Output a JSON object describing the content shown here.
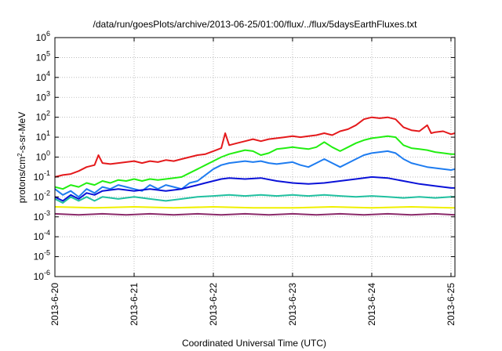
{
  "chart_data": {
    "type": "line",
    "title": "/data/run/goesPlots/archive/2013-06-25/01:00/flux/../flux/5daysEarthFluxes.txt",
    "xlabel": "Coordinated Universal Time (UTC)",
    "ylabel": {
      "pre": "protons/cm",
      "sup": "2",
      "post": "-s-sr-MeV"
    },
    "yscale": "log",
    "ylim": [
      -6,
      6
    ],
    "xlim": [
      0,
      5.05
    ],
    "grid": true,
    "legend": "none",
    "y_ticks": [
      {
        "exp": -6,
        "base": "10",
        "pow": "-6"
      },
      {
        "exp": -5,
        "base": "10",
        "pow": "-5"
      },
      {
        "exp": -4,
        "base": "10",
        "pow": "-4"
      },
      {
        "exp": -3,
        "base": "10",
        "pow": "-3"
      },
      {
        "exp": -2,
        "base": "10",
        "pow": "-2"
      },
      {
        "exp": -1,
        "base": "10",
        "pow": "-1"
      },
      {
        "exp": 0,
        "base": "10",
        "pow": "0"
      },
      {
        "exp": 1,
        "base": "10",
        "pow": "1"
      },
      {
        "exp": 2,
        "base": "10",
        "pow": "2"
      },
      {
        "exp": 3,
        "base": "10",
        "pow": "3"
      },
      {
        "exp": 4,
        "base": "10",
        "pow": "4"
      },
      {
        "exp": 5,
        "base": "10",
        "pow": "5"
      },
      {
        "exp": 6,
        "base": "10",
        "pow": "6"
      }
    ],
    "x_ticks": [
      {
        "day": 0,
        "label": "2013-6-20"
      },
      {
        "day": 1,
        "label": "2013-6-21"
      },
      {
        "day": 2,
        "label": "2013-6-22"
      },
      {
        "day": 3,
        "label": "2013-6-23"
      },
      {
        "day": 4,
        "label": "2013-6-24"
      },
      {
        "day": 5,
        "label": "2013-6-25"
      }
    ],
    "series": [
      {
        "color": "#e41a1c",
        "points": [
          [
            0,
            -1.0
          ],
          [
            0.1,
            -0.9
          ],
          [
            0.2,
            -0.85
          ],
          [
            0.3,
            -0.7
          ],
          [
            0.4,
            -0.5
          ],
          [
            0.5,
            -0.4
          ],
          [
            0.55,
            0.1
          ],
          [
            0.6,
            -0.3
          ],
          [
            0.7,
            -0.35
          ],
          [
            0.8,
            -0.3
          ],
          [
            0.9,
            -0.25
          ],
          [
            1.0,
            -0.2
          ],
          [
            1.1,
            -0.3
          ],
          [
            1.2,
            -0.2
          ],
          [
            1.3,
            -0.25
          ],
          [
            1.4,
            -0.15
          ],
          [
            1.5,
            -0.2
          ],
          [
            1.6,
            -0.1
          ],
          [
            1.7,
            0.0
          ],
          [
            1.8,
            0.1
          ],
          [
            1.9,
            0.15
          ],
          [
            2.0,
            0.3
          ],
          [
            2.1,
            0.45
          ],
          [
            2.15,
            1.2
          ],
          [
            2.2,
            0.6
          ],
          [
            2.3,
            0.7
          ],
          [
            2.4,
            0.8
          ],
          [
            2.5,
            0.9
          ],
          [
            2.6,
            0.8
          ],
          [
            2.7,
            0.9
          ],
          [
            2.8,
            0.95
          ],
          [
            2.9,
            1.0
          ],
          [
            3.0,
            1.05
          ],
          [
            3.1,
            1.0
          ],
          [
            3.2,
            1.05
          ],
          [
            3.3,
            1.1
          ],
          [
            3.4,
            1.2
          ],
          [
            3.5,
            1.1
          ],
          [
            3.6,
            1.3
          ],
          [
            3.7,
            1.4
          ],
          [
            3.8,
            1.6
          ],
          [
            3.9,
            1.9
          ],
          [
            4.0,
            2.0
          ],
          [
            4.1,
            1.95
          ],
          [
            4.2,
            2.0
          ],
          [
            4.3,
            1.9
          ],
          [
            4.4,
            1.5
          ],
          [
            4.5,
            1.35
          ],
          [
            4.6,
            1.3
          ],
          [
            4.7,
            1.6
          ],
          [
            4.75,
            1.2
          ],
          [
            4.8,
            1.25
          ],
          [
            4.9,
            1.3
          ],
          [
            5.0,
            1.15
          ],
          [
            5.05,
            1.2
          ]
        ]
      },
      {
        "color": "#22ee11",
        "points": [
          [
            0,
            -1.5
          ],
          [
            0.1,
            -1.6
          ],
          [
            0.2,
            -1.4
          ],
          [
            0.3,
            -1.5
          ],
          [
            0.4,
            -1.3
          ],
          [
            0.5,
            -1.4
          ],
          [
            0.6,
            -1.2
          ],
          [
            0.7,
            -1.3
          ],
          [
            0.8,
            -1.15
          ],
          [
            0.9,
            -1.2
          ],
          [
            1.0,
            -1.1
          ],
          [
            1.1,
            -1.2
          ],
          [
            1.2,
            -1.1
          ],
          [
            1.3,
            -1.15
          ],
          [
            1.4,
            -1.1
          ],
          [
            1.5,
            -1.05
          ],
          [
            1.6,
            -1.0
          ],
          [
            1.7,
            -0.8
          ],
          [
            1.8,
            -0.6
          ],
          [
            1.9,
            -0.4
          ],
          [
            2.0,
            -0.2
          ],
          [
            2.1,
            0.0
          ],
          [
            2.2,
            0.15
          ],
          [
            2.3,
            0.25
          ],
          [
            2.4,
            0.35
          ],
          [
            2.5,
            0.3
          ],
          [
            2.6,
            0.1
          ],
          [
            2.7,
            0.2
          ],
          [
            2.8,
            0.4
          ],
          [
            2.9,
            0.45
          ],
          [
            3.0,
            0.5
          ],
          [
            3.1,
            0.45
          ],
          [
            3.2,
            0.4
          ],
          [
            3.3,
            0.5
          ],
          [
            3.4,
            0.75
          ],
          [
            3.5,
            0.5
          ],
          [
            3.6,
            0.3
          ],
          [
            3.7,
            0.5
          ],
          [
            3.8,
            0.7
          ],
          [
            3.9,
            0.85
          ],
          [
            4.0,
            0.95
          ],
          [
            4.1,
            1.0
          ],
          [
            4.2,
            1.05
          ],
          [
            4.3,
            1.0
          ],
          [
            4.4,
            0.6
          ],
          [
            4.5,
            0.45
          ],
          [
            4.6,
            0.4
          ],
          [
            4.7,
            0.35
          ],
          [
            4.8,
            0.25
          ],
          [
            4.9,
            0.2
          ],
          [
            5.0,
            0.15
          ],
          [
            5.05,
            0.15
          ]
        ]
      },
      {
        "color": "#1e7cf0",
        "points": [
          [
            0,
            -1.6
          ],
          [
            0.1,
            -1.9
          ],
          [
            0.2,
            -1.7
          ],
          [
            0.3,
            -2.0
          ],
          [
            0.4,
            -1.6
          ],
          [
            0.5,
            -1.8
          ],
          [
            0.6,
            -1.5
          ],
          [
            0.7,
            -1.6
          ],
          [
            0.8,
            -1.4
          ],
          [
            0.9,
            -1.5
          ],
          [
            1.0,
            -1.6
          ],
          [
            1.1,
            -1.7
          ],
          [
            1.2,
            -1.4
          ],
          [
            1.3,
            -1.6
          ],
          [
            1.4,
            -1.4
          ],
          [
            1.5,
            -1.5
          ],
          [
            1.6,
            -1.6
          ],
          [
            1.7,
            -1.3
          ],
          [
            1.8,
            -1.2
          ],
          [
            1.9,
            -0.9
          ],
          [
            2.0,
            -0.6
          ],
          [
            2.1,
            -0.4
          ],
          [
            2.2,
            -0.3
          ],
          [
            2.3,
            -0.25
          ],
          [
            2.4,
            -0.2
          ],
          [
            2.5,
            -0.25
          ],
          [
            2.6,
            -0.2
          ],
          [
            2.7,
            -0.3
          ],
          [
            2.8,
            -0.35
          ],
          [
            2.9,
            -0.3
          ],
          [
            3.0,
            -0.25
          ],
          [
            3.1,
            -0.4
          ],
          [
            3.2,
            -0.5
          ],
          [
            3.3,
            -0.3
          ],
          [
            3.4,
            -0.1
          ],
          [
            3.5,
            -0.3
          ],
          [
            3.6,
            -0.5
          ],
          [
            3.7,
            -0.3
          ],
          [
            3.8,
            -0.1
          ],
          [
            3.9,
            0.1
          ],
          [
            4.0,
            0.2
          ],
          [
            4.1,
            0.25
          ],
          [
            4.2,
            0.3
          ],
          [
            4.3,
            0.2
          ],
          [
            4.4,
            -0.1
          ],
          [
            4.5,
            -0.3
          ],
          [
            4.6,
            -0.4
          ],
          [
            4.7,
            -0.5
          ],
          [
            4.8,
            -0.55
          ],
          [
            4.9,
            -0.6
          ],
          [
            5.0,
            -0.65
          ],
          [
            5.05,
            -0.6
          ]
        ]
      },
      {
        "color": "#0a12d8",
        "points": [
          [
            0,
            -2.0
          ],
          [
            0.1,
            -2.2
          ],
          [
            0.2,
            -1.9
          ],
          [
            0.3,
            -2.1
          ],
          [
            0.4,
            -1.8
          ],
          [
            0.5,
            -1.9
          ],
          [
            0.6,
            -1.7
          ],
          [
            0.8,
            -1.6
          ],
          [
            1.0,
            -1.7
          ],
          [
            1.2,
            -1.6
          ],
          [
            1.4,
            -1.7
          ],
          [
            1.6,
            -1.6
          ],
          [
            1.7,
            -1.5
          ],
          [
            1.8,
            -1.4
          ],
          [
            1.9,
            -1.3
          ],
          [
            2.0,
            -1.2
          ],
          [
            2.1,
            -1.1
          ],
          [
            2.2,
            -1.05
          ],
          [
            2.4,
            -1.1
          ],
          [
            2.6,
            -1.05
          ],
          [
            2.8,
            -1.2
          ],
          [
            3.0,
            -1.3
          ],
          [
            3.2,
            -1.35
          ],
          [
            3.4,
            -1.3
          ],
          [
            3.6,
            -1.2
          ],
          [
            3.8,
            -1.1
          ],
          [
            4.0,
            -1.0
          ],
          [
            4.2,
            -1.05
          ],
          [
            4.4,
            -1.2
          ],
          [
            4.6,
            -1.35
          ],
          [
            4.8,
            -1.45
          ],
          [
            5.0,
            -1.55
          ],
          [
            5.05,
            -1.55
          ]
        ]
      },
      {
        "color": "#20c0a0",
        "points": [
          [
            0,
            -2.1
          ],
          [
            0.1,
            -2.3
          ],
          [
            0.2,
            -2.0
          ],
          [
            0.3,
            -2.2
          ],
          [
            0.4,
            -2.0
          ],
          [
            0.5,
            -2.2
          ],
          [
            0.6,
            -2.0
          ],
          [
            0.8,
            -2.1
          ],
          [
            1.0,
            -2.0
          ],
          [
            1.2,
            -2.1
          ],
          [
            1.4,
            -2.2
          ],
          [
            1.6,
            -2.1
          ],
          [
            1.8,
            -2.0
          ],
          [
            2.0,
            -1.95
          ],
          [
            2.2,
            -1.9
          ],
          [
            2.4,
            -1.95
          ],
          [
            2.6,
            -1.9
          ],
          [
            2.8,
            -1.95
          ],
          [
            3.0,
            -1.9
          ],
          [
            3.2,
            -1.95
          ],
          [
            3.4,
            -1.9
          ],
          [
            3.6,
            -1.95
          ],
          [
            3.8,
            -2.0
          ],
          [
            4.0,
            -1.95
          ],
          [
            4.2,
            -2.0
          ],
          [
            4.4,
            -2.05
          ],
          [
            4.6,
            -2.0
          ],
          [
            4.8,
            -2.05
          ],
          [
            5.0,
            -2.0
          ],
          [
            5.05,
            -2.0
          ]
        ]
      },
      {
        "color": "#f0f000",
        "points": [
          [
            0,
            -2.5
          ],
          [
            0.5,
            -2.55
          ],
          [
            1.0,
            -2.5
          ],
          [
            1.5,
            -2.55
          ],
          [
            2.0,
            -2.5
          ],
          [
            2.5,
            -2.55
          ],
          [
            3.0,
            -2.55
          ],
          [
            3.5,
            -2.5
          ],
          [
            4.0,
            -2.55
          ],
          [
            4.5,
            -2.5
          ],
          [
            5.0,
            -2.55
          ],
          [
            5.05,
            -2.55
          ]
        ]
      },
      {
        "color": "#8b2a6a",
        "points": [
          [
            0,
            -2.85
          ],
          [
            0.3,
            -2.9
          ],
          [
            0.6,
            -2.85
          ],
          [
            0.9,
            -2.9
          ],
          [
            1.2,
            -2.85
          ],
          [
            1.5,
            -2.9
          ],
          [
            1.8,
            -2.85
          ],
          [
            2.1,
            -2.9
          ],
          [
            2.4,
            -2.85
          ],
          [
            2.7,
            -2.9
          ],
          [
            3.0,
            -2.85
          ],
          [
            3.3,
            -2.9
          ],
          [
            3.6,
            -2.85
          ],
          [
            3.9,
            -2.9
          ],
          [
            4.2,
            -2.85
          ],
          [
            4.5,
            -2.9
          ],
          [
            4.8,
            -2.85
          ],
          [
            5.05,
            -2.9
          ]
        ]
      }
    ]
  }
}
